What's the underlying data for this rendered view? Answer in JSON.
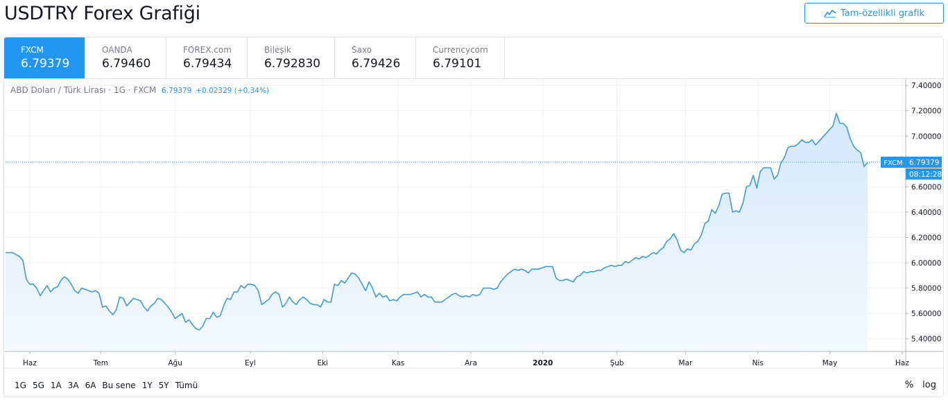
{
  "page": {
    "title": "USDTRY Forex Grafiği",
    "full_chart_button": "Tam-özellikli grafik"
  },
  "tabs": [
    {
      "name": "FXCM",
      "value": "6.79379",
      "active": true
    },
    {
      "name": "OANDA",
      "value": "6.79460",
      "active": false
    },
    {
      "name": "FOREX.com",
      "value": "6.79434",
      "active": false
    },
    {
      "name": "Bileşik",
      "value": "6.792830",
      "active": false
    },
    {
      "name": "Saxo",
      "value": "6.79426",
      "active": false
    },
    {
      "name": "Currencycom",
      "value": "6.79101",
      "active": false
    }
  ],
  "legend": {
    "symbol": "ABD Doları / Türk Lirası · 1G · FXCM",
    "price": "6.79379",
    "change": "+0.02329 (+0.34%)"
  },
  "last_price_label": {
    "source": "FXCM",
    "price": "6.79379",
    "countdown": "08:12:28"
  },
  "footer": {
    "ranges": [
      "1G",
      "5G",
      "1A",
      "3A",
      "6A",
      "Bu sene",
      "1Y",
      "5Y",
      "Tümü"
    ],
    "percent": "%",
    "log": "log"
  },
  "colors": {
    "accent": "#2196f3",
    "line": "#3d9bd6",
    "grid": "#eef0f3",
    "area_top": "#d4e8fb",
    "area_bottom": "#f4f9fe"
  },
  "chart_data": {
    "type": "area",
    "title": "",
    "xlabel": "",
    "ylabel": "",
    "ylim": [
      5.3,
      7.45
    ],
    "xlim": [
      0,
      250
    ],
    "yticks": [
      5.4,
      5.6,
      5.8,
      6.0,
      6.2,
      6.4,
      6.6,
      6.8,
      7.0,
      7.2,
      7.4
    ],
    "ytick_labels": [
      "5.40000",
      "5.60000",
      "5.80000",
      "6.00000",
      "6.20000",
      "6.40000",
      "6.60000",
      "6.80000",
      "7.00000",
      "7.20000",
      "7.40000"
    ],
    "x_month_ticks": [
      {
        "x": 7,
        "label": "Haz"
      },
      {
        "x": 27.5,
        "label": "Tem"
      },
      {
        "x": 49,
        "label": "Ağu"
      },
      {
        "x": 70.7,
        "label": "Eyl"
      },
      {
        "x": 91.6,
        "label": "Eki"
      },
      {
        "x": 113.4,
        "label": "Kas"
      },
      {
        "x": 134.4,
        "label": "Ara"
      },
      {
        "x": 155.2,
        "label": "2020",
        "bold": true
      },
      {
        "x": 176.6,
        "label": "Şub"
      },
      {
        "x": 196.4,
        "label": "Mar"
      },
      {
        "x": 217.3,
        "label": "Nis"
      },
      {
        "x": 238.1,
        "label": "May"
      },
      {
        "x": 259,
        "label": "Haz"
      }
    ],
    "grid": true,
    "last_value": 6.79379,
    "series": [
      {
        "values": [
          [
            0,
            6.08
          ],
          [
            2,
            6.08
          ],
          [
            4,
            6.05
          ],
          [
            5,
            6.02
          ],
          [
            6,
            5.87
          ],
          [
            7,
            5.83
          ],
          [
            8,
            5.83
          ],
          [
            9,
            5.8
          ],
          [
            10,
            5.74
          ],
          [
            11,
            5.78
          ],
          [
            12,
            5.82
          ],
          [
            13,
            5.77
          ],
          [
            14,
            5.8
          ],
          [
            15,
            5.81
          ],
          [
            16,
            5.86
          ],
          [
            17,
            5.89
          ],
          [
            18,
            5.87
          ],
          [
            19,
            5.83
          ],
          [
            20,
            5.78
          ],
          [
            21,
            5.76
          ],
          [
            22,
            5.8
          ],
          [
            23,
            5.79
          ],
          [
            24,
            5.78
          ],
          [
            25,
            5.77
          ],
          [
            26,
            5.78
          ],
          [
            27,
            5.76
          ],
          [
            28,
            5.65
          ],
          [
            29,
            5.66
          ],
          [
            30,
            5.62
          ],
          [
            31,
            5.59
          ],
          [
            32,
            5.63
          ],
          [
            33,
            5.73
          ],
          [
            34,
            5.72
          ],
          [
            35,
            5.66
          ],
          [
            36,
            5.69
          ],
          [
            37,
            5.72
          ],
          [
            38,
            5.71
          ],
          [
            39,
            5.7
          ],
          [
            40,
            5.65
          ],
          [
            41,
            5.62
          ],
          [
            42,
            5.66
          ],
          [
            43,
            5.68
          ],
          [
            44,
            5.72
          ],
          [
            45,
            5.71
          ],
          [
            46,
            5.68
          ],
          [
            47,
            5.65
          ],
          [
            48,
            5.61
          ],
          [
            49,
            5.56
          ],
          [
            50,
            5.58
          ],
          [
            51,
            5.6
          ],
          [
            52,
            5.53
          ],
          [
            53,
            5.55
          ],
          [
            54,
            5.51
          ],
          [
            55,
            5.48
          ],
          [
            56,
            5.47
          ],
          [
            57,
            5.5
          ],
          [
            58,
            5.56
          ],
          [
            59,
            5.56
          ],
          [
            60,
            5.61
          ],
          [
            61,
            5.57
          ],
          [
            62,
            5.58
          ],
          [
            63,
            5.66
          ],
          [
            64,
            5.72
          ],
          [
            65,
            5.71
          ],
          [
            66,
            5.77
          ],
          [
            67,
            5.77
          ],
          [
            68,
            5.82
          ],
          [
            69,
            5.8
          ],
          [
            70,
            5.83
          ],
          [
            71,
            5.83
          ],
          [
            72,
            5.82
          ],
          [
            73,
            5.78
          ],
          [
            74,
            5.67
          ],
          [
            75,
            5.69
          ],
          [
            76,
            5.71
          ],
          [
            77,
            5.75
          ],
          [
            78,
            5.77
          ],
          [
            79,
            5.75
          ],
          [
            80,
            5.65
          ],
          [
            81,
            5.68
          ],
          [
            82,
            5.73
          ],
          [
            83,
            5.69
          ],
          [
            84,
            5.67
          ],
          [
            85,
            5.71
          ],
          [
            86,
            5.73
          ],
          [
            87,
            5.71
          ],
          [
            88,
            5.68
          ],
          [
            89,
            5.67
          ],
          [
            90,
            5.67
          ],
          [
            91,
            5.65
          ],
          [
            92,
            5.71
          ],
          [
            93,
            5.69
          ],
          [
            94,
            5.69
          ],
          [
            95,
            5.83
          ],
          [
            96,
            5.82
          ],
          [
            97,
            5.86
          ],
          [
            98,
            5.84
          ],
          [
            99,
            5.88
          ],
          [
            100,
            5.92
          ],
          [
            101,
            5.91
          ],
          [
            102,
            5.88
          ],
          [
            103,
            5.83
          ],
          [
            104,
            5.78
          ],
          [
            105,
            5.85
          ],
          [
            106,
            5.8
          ],
          [
            107,
            5.73
          ],
          [
            108,
            5.76
          ],
          [
            109,
            5.73
          ],
          [
            110,
            5.74
          ],
          [
            111,
            5.7
          ],
          [
            112,
            5.71
          ],
          [
            113,
            5.7
          ],
          [
            114,
            5.73
          ],
          [
            115,
            5.75
          ],
          [
            116,
            5.75
          ],
          [
            117,
            5.75
          ],
          [
            118,
            5.76
          ],
          [
            119,
            5.77
          ],
          [
            120,
            5.73
          ],
          [
            121,
            5.75
          ],
          [
            122,
            5.73
          ],
          [
            123,
            5.73
          ],
          [
            124,
            5.69
          ],
          [
            125,
            5.69
          ],
          [
            126,
            5.69
          ],
          [
            127,
            5.71
          ],
          [
            128,
            5.73
          ],
          [
            129,
            5.75
          ],
          [
            130,
            5.76
          ],
          [
            131,
            5.74
          ],
          [
            132,
            5.73
          ],
          [
            133,
            5.74
          ],
          [
            134,
            5.73
          ],
          [
            135,
            5.75
          ],
          [
            136,
            5.74
          ],
          [
            137,
            5.75
          ],
          [
            138,
            5.8
          ],
          [
            139,
            5.8
          ],
          [
            140,
            5.8
          ],
          [
            141,
            5.79
          ],
          [
            142,
            5.8
          ],
          [
            143,
            5.85
          ],
          [
            144,
            5.88
          ],
          [
            145,
            5.91
          ],
          [
            146,
            5.93
          ],
          [
            147,
            5.95
          ],
          [
            148,
            5.94
          ],
          [
            149,
            5.95
          ],
          [
            150,
            5.94
          ],
          [
            151,
            5.92
          ],
          [
            152,
            5.95
          ],
          [
            153,
            5.95
          ],
          [
            154,
            5.95
          ],
          [
            155,
            5.96
          ],
          [
            156,
            5.97
          ],
          [
            157,
            5.97
          ],
          [
            158,
            5.97
          ],
          [
            159,
            5.88
          ],
          [
            160,
            5.86
          ],
          [
            161,
            5.86
          ],
          [
            162,
            5.87
          ],
          [
            163,
            5.86
          ],
          [
            164,
            5.85
          ],
          [
            165,
            5.89
          ],
          [
            166,
            5.9
          ],
          [
            167,
            5.93
          ],
          [
            168,
            5.92
          ],
          [
            169,
            5.93
          ],
          [
            170,
            5.93
          ],
          [
            171,
            5.94
          ],
          [
            172,
            5.94
          ],
          [
            173,
            5.96
          ],
          [
            174,
            5.97
          ],
          [
            175,
            5.98
          ],
          [
            176,
            5.97
          ],
          [
            177,
            5.98
          ],
          [
            178,
            5.98
          ],
          [
            179,
            6.01
          ],
          [
            180,
            6.0
          ],
          [
            181,
            6.02
          ],
          [
            182,
            6.04
          ],
          [
            183,
            6.03
          ],
          [
            184,
            6.05
          ],
          [
            185,
            6.04
          ],
          [
            186,
            6.06
          ],
          [
            187,
            6.08
          ],
          [
            188,
            6.07
          ],
          [
            189,
            6.1
          ],
          [
            190,
            6.12
          ],
          [
            191,
            6.17
          ],
          [
            192,
            6.19
          ],
          [
            193,
            6.23
          ],
          [
            194,
            6.18
          ],
          [
            195,
            6.1
          ],
          [
            196,
            6.08
          ],
          [
            197,
            6.11
          ],
          [
            198,
            6.1
          ],
          [
            199,
            6.15
          ],
          [
            200,
            6.17
          ],
          [
            201,
            6.22
          ],
          [
            202,
            6.31
          ],
          [
            203,
            6.33
          ],
          [
            204,
            6.42
          ],
          [
            205,
            6.39
          ],
          [
            206,
            6.45
          ],
          [
            207,
            6.54
          ],
          [
            208,
            6.55
          ],
          [
            209,
            6.55
          ],
          [
            210,
            6.4
          ],
          [
            211,
            6.41
          ],
          [
            212,
            6.4
          ],
          [
            213,
            6.47
          ],
          [
            214,
            6.6
          ],
          [
            215,
            6.61
          ],
          [
            216,
            6.69
          ],
          [
            217,
            6.59
          ],
          [
            218,
            6.72
          ],
          [
            219,
            6.75
          ],
          [
            220,
            6.75
          ],
          [
            221,
            6.75
          ],
          [
            222,
            6.66
          ],
          [
            223,
            6.69
          ],
          [
            224,
            6.79
          ],
          [
            225,
            6.83
          ],
          [
            226,
            6.91
          ],
          [
            227,
            6.92
          ],
          [
            228,
            6.92
          ],
          [
            229,
            6.94
          ],
          [
            230,
            6.97
          ],
          [
            231,
            6.95
          ],
          [
            232,
            6.95
          ],
          [
            233,
            6.97
          ],
          [
            234,
            6.93
          ],
          [
            235,
            6.96
          ],
          [
            236,
            6.99
          ],
          [
            237,
            7.02
          ],
          [
            238,
            7.05
          ],
          [
            239,
            7.08
          ],
          [
            240,
            7.18
          ],
          [
            241,
            7.1
          ],
          [
            242,
            7.1
          ],
          [
            243,
            7.07
          ],
          [
            244,
            6.98
          ],
          [
            245,
            6.92
          ],
          [
            246,
            6.89
          ],
          [
            247,
            6.87
          ],
          [
            248,
            6.76
          ],
          [
            249,
            6.79
          ]
        ]
      }
    ]
  }
}
